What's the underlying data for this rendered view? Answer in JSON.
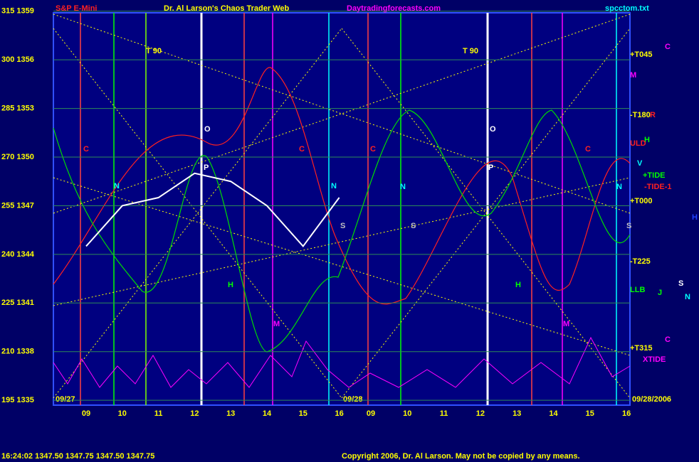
{
  "chart_data": {
    "type": "line",
    "title": "Dr. Al Larson's Chaos Trader Web",
    "subtitle": "S&P E-Mini",
    "site": "Daytradingforecasts.com",
    "file": "spcctom.txt",
    "categories": [
      "09",
      "10",
      "11",
      "12",
      "13",
      "14",
      "15",
      "16",
      "09",
      "10",
      "11",
      "12",
      "13",
      "14",
      "15",
      "16"
    ],
    "series": [
      {
        "name": "S&P E-Mini",
        "color": "#ffffff",
        "values": [
          1344.5,
          1347,
          1347.5,
          1349,
          1348.5,
          1347,
          1344.5,
          1347.5,
          null,
          null,
          null,
          null,
          null,
          null,
          null,
          null
        ]
      }
    ],
    "ylim": [
      1334.7,
      1358.9
    ],
    "yticks": [
      {
        "value": 1335,
        "label": "195 1335"
      },
      {
        "value": 1338,
        "label": "210 1338"
      },
      {
        "value": 1341,
        "label": "225 1341"
      },
      {
        "value": 1344,
        "label": "240 1344"
      },
      {
        "value": 1347,
        "label": "255 1347"
      },
      {
        "value": 1350,
        "label": "270 1350"
      },
      {
        "value": 1353,
        "label": "285 1353"
      },
      {
        "value": 1356,
        "label": "300 1356"
      },
      {
        "value": 1359,
        "label": "315 1359"
      }
    ],
    "grid": true,
    "dates": [
      "09/27",
      "09/28",
      "09/28/2006"
    ],
    "status": "16:24:02  1347.50  1347.75  1347.50  1347.75",
    "copyright": "Copyright 2006, Dr. Al Larson. May not be copied by any means.",
    "annotations": [
      {
        "text": "T 90",
        "color": "#ffff00"
      },
      {
        "text": "T 90",
        "color": "#ffff00"
      },
      {
        "text": "O",
        "color": "#ffffff"
      },
      {
        "text": "O",
        "color": "#ffffff"
      },
      {
        "text": "P",
        "color": "#ffffff"
      },
      {
        "text": "P",
        "color": "#ffffff"
      },
      {
        "text": "+T045",
        "color": "#ffff00"
      },
      {
        "text": "M",
        "color": "#ff00ff"
      },
      {
        "text": "-T180",
        "color": "#ffff00"
      },
      {
        "text": "R",
        "color": "#ff2020"
      },
      {
        "text": "H",
        "color": "#00ff00"
      },
      {
        "text": "ULD",
        "color": "#ff2020"
      },
      {
        "text": "V",
        "color": "#00ffff"
      },
      {
        "text": "+TIDE",
        "color": "#00ff00"
      },
      {
        "text": "-TIDE-1",
        "color": "#ff2020"
      },
      {
        "text": "+T000",
        "color": "#ffff00"
      },
      {
        "text": "-T225",
        "color": "#ffff00"
      },
      {
        "text": "LLB",
        "color": "#00ff00"
      },
      {
        "text": "+T315",
        "color": "#ffff00"
      },
      {
        "text": "XTIDE",
        "color": "#ff00ff"
      },
      {
        "text": "C",
        "color": "#ff00ff"
      },
      {
        "text": "C",
        "color": "#ff00ff"
      },
      {
        "text": "J",
        "color": "#00ff00"
      },
      {
        "text": "S",
        "color": "#ffffff"
      },
      {
        "text": "N",
        "color": "#00ffff"
      },
      {
        "text": "H",
        "color": "#2040ff"
      },
      {
        "text": "N",
        "color": "#00ffff"
      },
      {
        "text": "N",
        "color": "#00ffff"
      },
      {
        "text": "N",
        "color": "#00ffff"
      },
      {
        "text": "N",
        "color": "#00ffff"
      },
      {
        "text": "S",
        "color": "#c0c0c0"
      },
      {
        "text": "S",
        "color": "#c0c0c0"
      },
      {
        "text": "S",
        "color": "#c0c0c0"
      },
      {
        "text": "C",
        "color": "#ff2020"
      },
      {
        "text": "C",
        "color": "#ff2020"
      },
      {
        "text": "C",
        "color": "#ff2020"
      },
      {
        "text": "C",
        "color": "#ff2020"
      },
      {
        "text": "M",
        "color": "#ff00ff"
      },
      {
        "text": "M",
        "color": "#ff00ff"
      },
      {
        "text": "H",
        "color": "#00ff00"
      },
      {
        "text": "H",
        "color": "#00ff00"
      }
    ]
  }
}
